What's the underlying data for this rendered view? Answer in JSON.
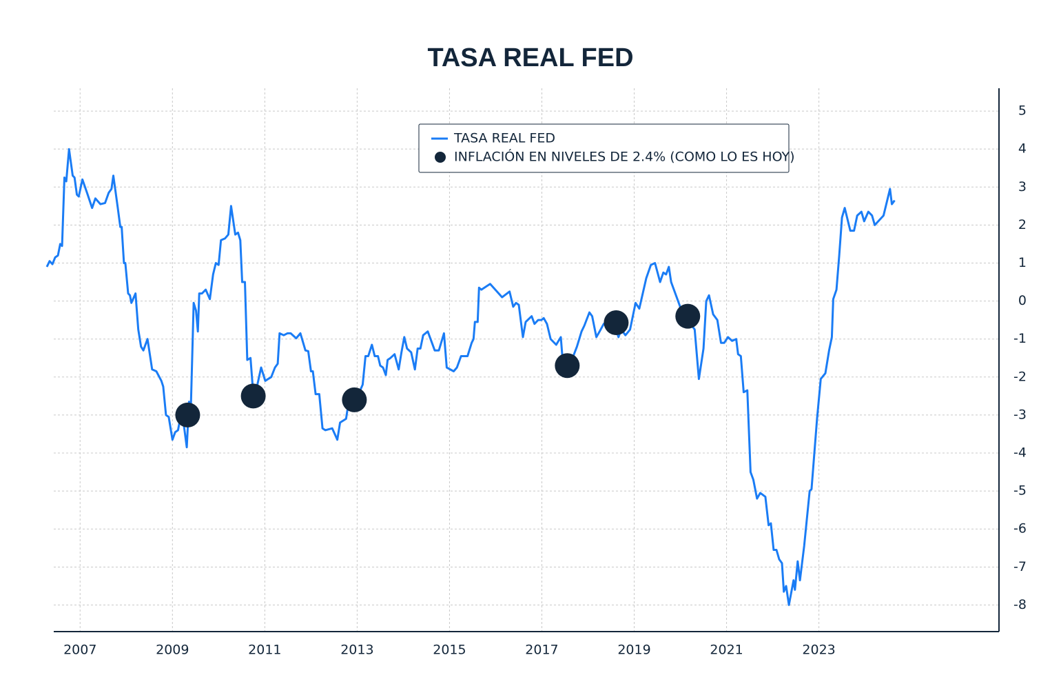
{
  "chart_data": {
    "type": "line",
    "title": "TASA REAL FED",
    "xlim": [
      2006.25,
      2026.9
    ],
    "xticks": [
      2007,
      2009,
      2011,
      2013,
      2015,
      2017,
      2019,
      2021,
      2023
    ],
    "ylim": [
      -8.7,
      5.6
    ],
    "yticks": [
      -8,
      -7,
      -6,
      -5,
      -4,
      -3,
      -2,
      -1,
      0,
      1,
      2,
      3,
      4,
      5
    ],
    "grid": true,
    "y_axis_side": "right",
    "legend": "top",
    "series": [
      {
        "name": "TASA REAL FED",
        "type": "line",
        "color": "#1a7cf5",
        "x": [
          2006.28,
          2006.34,
          2006.4,
          2006.46,
          2006.52,
          2006.57,
          2006.61,
          2006.66,
          2006.7,
          2006.76,
          2006.84,
          2006.88,
          2006.93,
          2006.97,
          2007.05,
          2007.15,
          2007.26,
          2007.33,
          2007.44,
          2007.54,
          2007.62,
          2007.68,
          2007.72,
          2007.81,
          2007.87,
          2007.9,
          2007.95,
          2007.98,
          2008.04,
          2008.08,
          2008.11,
          2008.2,
          2008.26,
          2008.32,
          2008.37,
          2008.46,
          2008.56,
          2008.65,
          2008.76,
          2008.8,
          2008.86,
          2008.92,
          2009.0,
          2009.06,
          2009.12,
          2009.19,
          2009.25,
          2009.31,
          2009.36,
          2009.4,
          2009.46,
          2009.51,
          2009.55,
          2009.58,
          2009.64,
          2009.72,
          2009.81,
          2009.88,
          2009.94,
          2010.0,
          2010.05,
          2010.14,
          2010.21,
          2010.27,
          2010.36,
          2010.42,
          2010.47,
          2010.51,
          2010.57,
          2010.62,
          2010.69,
          2010.75,
          2010.84,
          2010.92,
          2011.01,
          2011.14,
          2011.22,
          2011.28,
          2011.32,
          2011.41,
          2011.49,
          2011.56,
          2011.68,
          2011.77,
          2011.88,
          2011.94,
          2012.0,
          2012.04,
          2012.1,
          2012.18,
          2012.25,
          2012.31,
          2012.46,
          2012.57,
          2012.63,
          2012.76,
          2012.81,
          2012.87,
          2012.96,
          2013.03,
          2013.12,
          2013.18,
          2013.24,
          2013.32,
          2013.38,
          2013.45,
          2013.5,
          2013.56,
          2013.62,
          2013.66,
          2013.72,
          2013.81,
          2013.9,
          2013.96,
          2014.02,
          2014.08,
          2014.17,
          2014.25,
          2014.31,
          2014.37,
          2014.43,
          2014.53,
          2014.68,
          2014.77,
          2014.88,
          2014.94,
          2015.09,
          2015.16,
          2015.25,
          2015.39,
          2015.48,
          2015.52,
          2015.55,
          2015.61,
          2015.64,
          2015.69,
          2015.88,
          2016.14,
          2016.3,
          2016.38,
          2016.44,
          2016.5,
          2016.59,
          2016.65,
          2016.78,
          2016.84,
          2016.92,
          2016.99,
          2017.04,
          2017.11,
          2017.19,
          2017.31,
          2017.41,
          2017.46,
          2017.56,
          2017.65,
          2017.76,
          2017.86,
          2017.92,
          2018.03,
          2018.09,
          2018.18,
          2018.25,
          2018.34,
          2018.4,
          2018.46,
          2018.52,
          2018.58,
          2018.66,
          2018.72,
          2018.81,
          2018.91,
          2019.03,
          2019.11,
          2019.26,
          2019.36,
          2019.45,
          2019.56,
          2019.63,
          2019.69,
          2019.75,
          2019.8,
          2019.92,
          2019.98,
          2020.05,
          2020.13,
          2020.19,
          2020.31,
          2020.4,
          2020.5,
          2020.56,
          2020.62,
          2020.71,
          2020.8,
          2020.88,
          2020.95,
          2021.03,
          2021.12,
          2021.21,
          2021.25,
          2021.31,
          2021.37,
          2021.45,
          2021.52,
          2021.58,
          2021.66,
          2021.73,
          2021.84,
          2021.91,
          2021.96,
          2022.02,
          2022.08,
          2022.14,
          2022.2,
          2022.24,
          2022.29,
          2022.35,
          2022.45,
          2022.48,
          2022.54,
          2022.59,
          2022.68,
          2022.8,
          2022.84,
          2022.96,
          2023.04,
          2023.14,
          2023.22,
          2023.28,
          2023.31,
          2023.38,
          2023.44,
          2023.5,
          2023.56,
          2023.68,
          2023.76,
          2023.83,
          2023.92,
          2023.98,
          2024.07,
          2024.15,
          2024.21,
          2024.4,
          2024.54,
          2024.58,
          2024.64
        ],
        "values": [
          0.9,
          1.05,
          0.97,
          1.15,
          1.2,
          1.5,
          1.45,
          3.25,
          3.15,
          4.0,
          3.3,
          3.25,
          2.8,
          2.75,
          3.2,
          2.85,
          2.45,
          2.7,
          2.55,
          2.58,
          2.85,
          2.95,
          3.3,
          2.5,
          1.95,
          1.95,
          1.0,
          1.0,
          0.2,
          0.15,
          -0.05,
          0.2,
          -0.75,
          -1.2,
          -1.3,
          -1.0,
          -1.8,
          -1.85,
          -2.1,
          -2.25,
          -3.0,
          -3.05,
          -3.65,
          -3.45,
          -3.4,
          -2.95,
          -3.3,
          -3.85,
          -2.65,
          -2.75,
          -0.05,
          -0.25,
          -0.8,
          0.2,
          0.2,
          0.3,
          0.05,
          0.7,
          1.0,
          0.95,
          1.6,
          1.65,
          1.75,
          2.5,
          1.75,
          1.8,
          1.6,
          0.5,
          0.5,
          -1.55,
          -1.5,
          -2.45,
          -2.2,
          -1.75,
          -2.1,
          -2.0,
          -1.75,
          -1.65,
          -0.85,
          -0.9,
          -0.85,
          -0.85,
          -0.98,
          -0.85,
          -1.3,
          -1.32,
          -1.85,
          -1.85,
          -2.45,
          -2.45,
          -3.35,
          -3.4,
          -3.35,
          -3.65,
          -3.2,
          -3.1,
          -2.7,
          -2.65,
          -2.65,
          -2.45,
          -2.2,
          -1.45,
          -1.45,
          -1.15,
          -1.45,
          -1.45,
          -1.7,
          -1.75,
          -1.95,
          -1.55,
          -1.5,
          -1.4,
          -1.8,
          -1.35,
          -0.95,
          -1.25,
          -1.35,
          -1.8,
          -1.25,
          -1.25,
          -0.9,
          -0.8,
          -1.3,
          -1.3,
          -0.85,
          -1.75,
          -1.85,
          -1.75,
          -1.45,
          -1.45,
          -1.1,
          -1.0,
          -0.55,
          -0.55,
          0.35,
          0.3,
          0.45,
          0.1,
          0.25,
          -0.15,
          -0.05,
          -0.1,
          -0.95,
          -0.55,
          -0.4,
          -0.6,
          -0.5,
          -0.5,
          -0.45,
          -0.6,
          -1.0,
          -1.15,
          -0.95,
          -1.7,
          -1.95,
          -1.55,
          -1.2,
          -0.8,
          -0.65,
          -0.3,
          -0.4,
          -0.95,
          -0.8,
          -0.6,
          -0.65,
          -0.45,
          -0.7,
          -0.65,
          -0.95,
          -0.75,
          -0.9,
          -0.75,
          -0.05,
          -0.2,
          0.6,
          0.95,
          1.0,
          0.5,
          0.75,
          0.7,
          0.9,
          0.5,
          0.1,
          -0.1,
          -0.35,
          -0.4,
          -0.55,
          -0.75,
          -2.05,
          -1.25,
          0.0,
          0.15,
          -0.35,
          -0.5,
          -1.1,
          -1.1,
          -0.95,
          -1.05,
          -1.0,
          -1.4,
          -1.45,
          -2.4,
          -2.35,
          -4.5,
          -4.7,
          -5.2,
          -5.05,
          -5.15,
          -5.9,
          -5.85,
          -6.55,
          -6.55,
          -6.8,
          -6.9,
          -7.65,
          -7.5,
          -8.0,
          -7.35,
          -7.6,
          -6.85,
          -7.35,
          -6.45,
          -5.0,
          -4.95,
          -3.1,
          -2.05,
          -1.9,
          -1.3,
          -0.95,
          0.05,
          0.3,
          1.2,
          2.2,
          2.45,
          1.85,
          1.85,
          2.25,
          2.35,
          2.1,
          2.35,
          2.25,
          2.0,
          2.25,
          2.95,
          2.55,
          2.65
        ]
      },
      {
        "name": "INFLACIÓN EN NIVELES DE 2.4% (COMO LO ES HOY)",
        "type": "scatter",
        "color": "#13263a",
        "x": [
          2009.33,
          2010.75,
          2012.94,
          2017.55,
          2018.61,
          2020.16
        ],
        "values": [
          -3.0,
          -2.5,
          -2.6,
          -1.7,
          -0.57,
          -0.4
        ]
      }
    ]
  }
}
